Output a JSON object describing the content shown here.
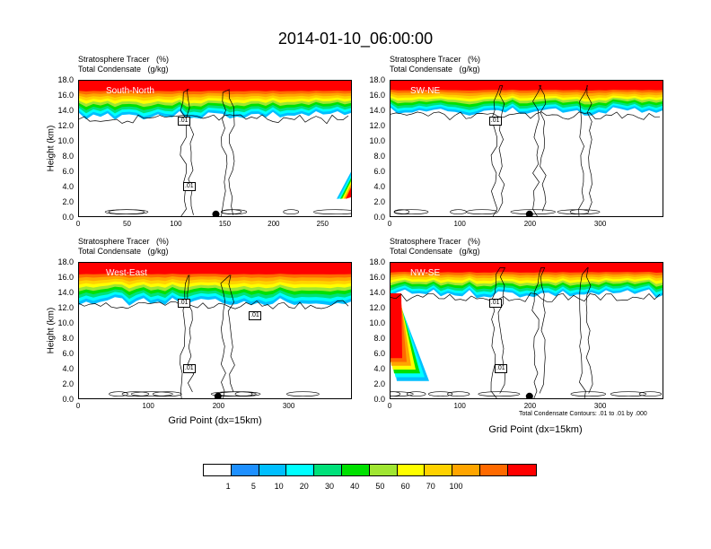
{
  "title": "2014-01-10_06:00:00",
  "panel_titles": [
    "Stratosphere Tracer   (%)",
    "Total Condensate   (g/kg)"
  ],
  "contour_note": "Total Condensate Contours: .01 to .01 by .000",
  "colorbar": {
    "colors": [
      "#ffffff",
      "#1e90ff",
      "#00bfff",
      "#00ffff",
      "#00e17a",
      "#00e100",
      "#a0e632",
      "#ffff00",
      "#ffd200",
      "#ffa500",
      "#ff6a00",
      "#ff0000"
    ],
    "labels": [
      "1",
      "5",
      "10",
      "20",
      "30",
      "40",
      "50",
      "60",
      "70",
      "100"
    ]
  },
  "chart_data": [
    {
      "type": "heatmap",
      "region": "South-North",
      "ylabel": "Height (km)",
      "xlabel": "",
      "ylim": [
        0,
        18
      ],
      "xlim": [
        0,
        280
      ],
      "yticks": [
        "0.0",
        "2.0",
        "4.0",
        "6.0",
        "8.0",
        "10.0",
        "12.0",
        "14.0",
        "16.0",
        "18.0"
      ],
      "xticks": [
        "0",
        "50",
        "100",
        "150",
        "200",
        "250"
      ],
      "contour_labels": [
        ".01",
        ".01"
      ],
      "tracer_base_km": 14.5,
      "marker_x": 140
    },
    {
      "type": "heatmap",
      "region": "SW-NE",
      "ylabel": "",
      "xlabel": "",
      "ylim": [
        0,
        18
      ],
      "xlim": [
        0,
        390
      ],
      "yticks": [
        "0.0",
        "2.0",
        "4.0",
        "6.0",
        "8.0",
        "10.0",
        "12.0",
        "14.0",
        "16.0",
        "18.0"
      ],
      "xticks": [
        "0",
        "100",
        "200",
        "300"
      ],
      "contour_labels": [
        ".01"
      ],
      "tracer_base_km": 15.0,
      "marker_x": 198
    },
    {
      "type": "heatmap",
      "region": "West-East",
      "ylabel": "Height (km)",
      "xlabel": "Grid Point (dx=15km)",
      "ylim": [
        0,
        18
      ],
      "xlim": [
        0,
        390
      ],
      "yticks": [
        "0.0",
        "2.0",
        "4.0",
        "6.0",
        "8.0",
        "10.0",
        "12.0",
        "14.0",
        "16.0",
        "18.0"
      ],
      "xticks": [
        "0",
        "100",
        "200",
        "300"
      ],
      "contour_labels": [
        ".01",
        ".01",
        ".01"
      ],
      "tracer_base_km": 14.0,
      "marker_x": 198
    },
    {
      "type": "heatmap",
      "region": "NW-SE",
      "ylabel": "",
      "xlabel": "Grid Point (dx=15km)",
      "ylim": [
        0,
        18
      ],
      "xlim": [
        0,
        390
      ],
      "yticks": [
        "0.0",
        "2.0",
        "4.0",
        "6.0",
        "8.0",
        "10.0",
        "12.0",
        "14.0",
        "16.0",
        "18.0"
      ],
      "xticks": [
        "0",
        "100",
        "200",
        "300"
      ],
      "contour_labels": [
        ".01",
        ".01"
      ],
      "tracer_base_km": 15.0,
      "marker_x": 198
    }
  ]
}
